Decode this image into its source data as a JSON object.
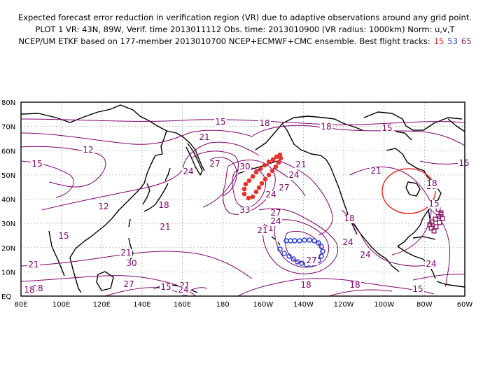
{
  "header": {
    "line1": "Expected forecast error reduction in verification region (VR) due to adaptive observations around any grid point.",
    "line2": "PLOT 1 VR: 43N, 89W, Verif. time 2013011112 Obs. time: 2013010900 (VR radius: 1000km) Norm: u,v,T",
    "line3": "NCEP/UM ETKF based on 177-member 2013010700 NCEP+ECMWF+CMC ensemble. Best flight tracks:",
    "tracks": [
      {
        "label": "15",
        "color": "#e8312a"
      },
      {
        "label": "53",
        "color": "#2a3fd6"
      },
      {
        "label": "65",
        "color": "#8b1a6b"
      }
    ]
  },
  "map": {
    "lat_labels": [
      "80N",
      "70N",
      "60N",
      "50N",
      "40N",
      "30N",
      "20N",
      "10N",
      "EQ"
    ],
    "lon_labels": [
      "80E",
      "100E",
      "120E",
      "140E",
      "160E",
      "180",
      "160W",
      "140W",
      "120W",
      "100W",
      "80W",
      "60W"
    ],
    "contour_color": "#800070",
    "contour_labels": [
      "15",
      "18",
      "18",
      "15",
      "12",
      "15",
      "21",
      "24",
      "27",
      "30",
      "21",
      "24",
      "27",
      "24",
      "15",
      "18",
      "12",
      "18",
      "15",
      "21",
      "18",
      "21",
      "33",
      "27",
      "24",
      "21",
      "21",
      "21",
      "24",
      "24",
      "27",
      "30",
      "24",
      "21",
      "18",
      "18",
      "15",
      "18",
      "15",
      "21",
      "27",
      "24",
      "18",
      "15",
      "18"
    ],
    "verification_region": {
      "center_lat": 43,
      "center_lon": -89,
      "radius_km": 1000,
      "color": "#e8312a"
    },
    "tracks": [
      {
        "id": "15",
        "color": "#e8312a",
        "marker": "filled-circle"
      },
      {
        "id": "53",
        "color": "#2a3fd6",
        "marker": "open-circle"
      },
      {
        "id": "65",
        "color": "#8b1a6b",
        "marker": "open-square"
      }
    ]
  }
}
